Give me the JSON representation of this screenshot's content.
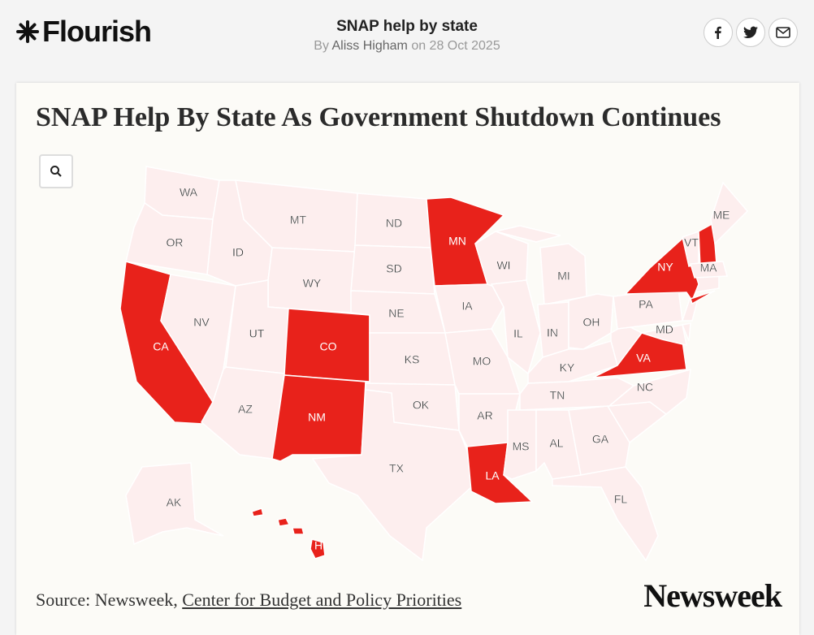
{
  "header": {
    "logo": "Flourish",
    "title": "SNAP help by state",
    "byline_prefix": "By",
    "author": "Aliss Higham",
    "byline_date": "on 28 Oct 2025"
  },
  "card": {
    "title": "SNAP Help By State As Government Shutdown Continues",
    "source_prefix": "Source: Newsweek,",
    "source_link": "Center for Budget and Policy Priorities",
    "brand": "Newsweek"
  },
  "map": {
    "highlight_color": "#e8221b",
    "base_color": "#fdeeee",
    "states": [
      {
        "label": "WA",
        "highlighted": false
      },
      {
        "label": "OR",
        "highlighted": false
      },
      {
        "label": "CA",
        "highlighted": true
      },
      {
        "label": "NV",
        "highlighted": false
      },
      {
        "label": "ID",
        "highlighted": false
      },
      {
        "label": "MT",
        "highlighted": false
      },
      {
        "label": "WY",
        "highlighted": false
      },
      {
        "label": "UT",
        "highlighted": false
      },
      {
        "label": "AZ",
        "highlighted": false
      },
      {
        "label": "CO",
        "highlighted": true
      },
      {
        "label": "NM",
        "highlighted": true
      },
      {
        "label": "ND",
        "highlighted": false
      },
      {
        "label": "SD",
        "highlighted": false
      },
      {
        "label": "NE",
        "highlighted": false
      },
      {
        "label": "KS",
        "highlighted": false
      },
      {
        "label": "OK",
        "highlighted": false
      },
      {
        "label": "TX",
        "highlighted": false
      },
      {
        "label": "MN",
        "highlighted": true
      },
      {
        "label": "IA",
        "highlighted": false
      },
      {
        "label": "MO",
        "highlighted": false
      },
      {
        "label": "AR",
        "highlighted": false
      },
      {
        "label": "LA",
        "highlighted": true
      },
      {
        "label": "WI",
        "highlighted": false
      },
      {
        "label": "IL",
        "highlighted": false
      },
      {
        "label": "MI",
        "highlighted": false
      },
      {
        "label": "IN",
        "highlighted": false
      },
      {
        "label": "OH",
        "highlighted": false
      },
      {
        "label": "KY",
        "highlighted": false
      },
      {
        "label": "TN",
        "highlighted": false
      },
      {
        "label": "MS",
        "highlighted": false
      },
      {
        "label": "AL",
        "highlighted": false
      },
      {
        "label": "GA",
        "highlighted": false
      },
      {
        "label": "FL",
        "highlighted": false
      },
      {
        "label": "NC",
        "highlighted": false
      },
      {
        "label": "VA",
        "highlighted": true
      },
      {
        "label": "MD",
        "highlighted": false
      },
      {
        "label": "PA",
        "highlighted": false
      },
      {
        "label": "NY",
        "highlighted": true
      },
      {
        "label": "VT",
        "highlighted": false
      },
      {
        "label": null,
        "highlighted": true
      },
      {
        "label": "ME",
        "highlighted": false
      },
      {
        "label": "MA",
        "highlighted": false
      },
      {
        "label": "AK",
        "highlighted": false
      },
      {
        "label": "HI",
        "highlighted": true
      }
    ]
  }
}
